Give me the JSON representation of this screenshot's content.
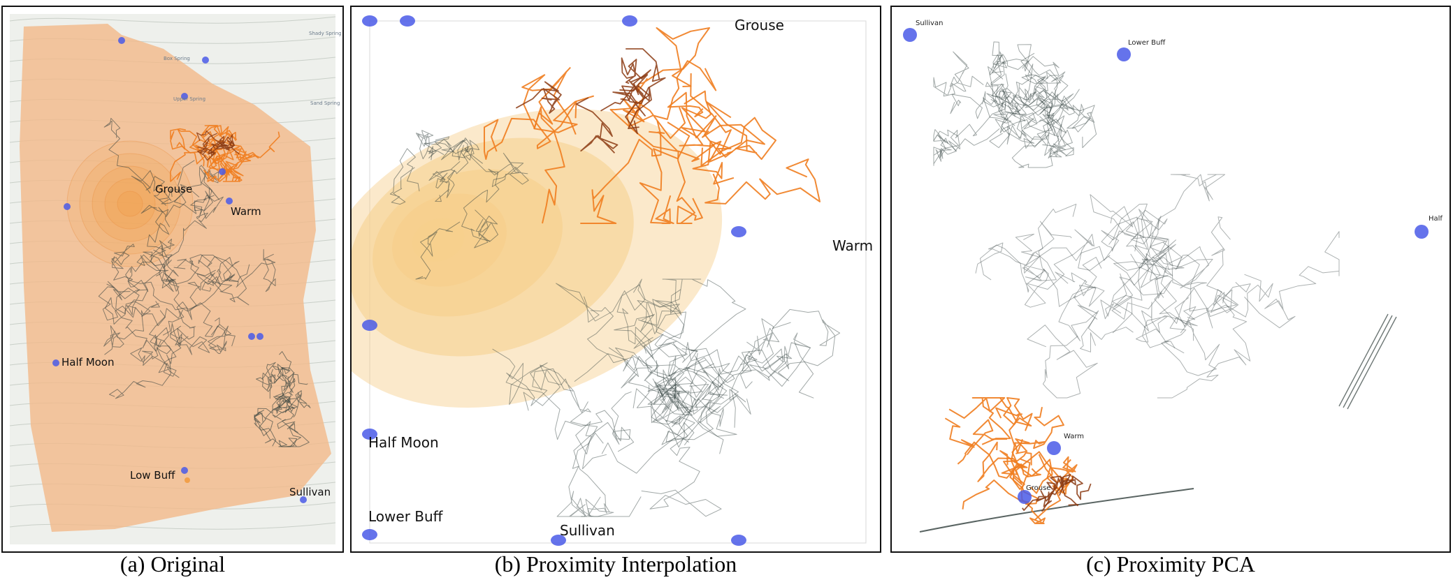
{
  "panels": {
    "a": {
      "caption": "(a) Original",
      "labels": {
        "grouse": "Grouse",
        "warm": "Warm",
        "half_moon": "Half Moon",
        "low_buff": "Low Buff",
        "sullivan": "Sullivan"
      },
      "map_text": {
        "box_spring": "Box Spring",
        "upper_spring": "Upper Spring",
        "shady_spring": "Shady Spring",
        "sand_spring": "Sand Spring"
      }
    },
    "b": {
      "caption": "(b) Proximity Interpolation",
      "labels": {
        "grouse": "Grouse",
        "warm": "Warm",
        "half_moon": "Half Moon",
        "lower_buff": "Lower Buff",
        "sullivan": "Sullivan"
      }
    },
    "c": {
      "caption": "(c) Proximity PCA",
      "labels": {
        "sullivan": "Sullivan",
        "lower_buff": "Lower Buff",
        "half": "Half",
        "warm": "Warm",
        "grouse": "Grouse"
      }
    }
  },
  "colors": {
    "anchor": "#4a5ae8",
    "track_gray": "#2f3d3b",
    "track_orange": "#ef7d1f",
    "track_brown": "#8b3a12",
    "hull": "#f2b98a",
    "map_bg": "#eef0ec",
    "density": "#f6cf8c"
  }
}
